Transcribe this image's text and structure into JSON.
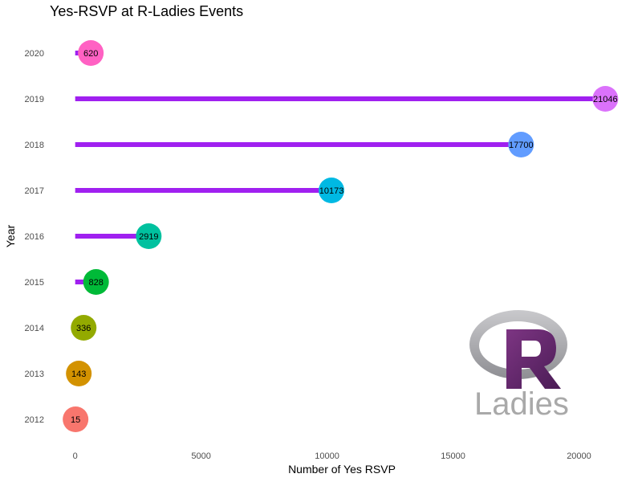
{
  "chart_data": {
    "type": "lollipop",
    "title": "Yes-RSVP at R-Ladies Events",
    "xlabel": "Number of Yes RSVP",
    "ylabel": "Year",
    "xlim": [
      -500,
      21800
    ],
    "x_ticks": [
      0,
      5000,
      10000,
      15000,
      20000
    ],
    "categories": [
      "2012",
      "2013",
      "2014",
      "2015",
      "2016",
      "2017",
      "2018",
      "2019",
      "2020"
    ],
    "values": [
      15,
      143,
      336,
      828,
      2919,
      10173,
      17700,
      21046,
      620
    ],
    "point_colors": [
      "#F8766D",
      "#D39200",
      "#93AA00",
      "#00BA38",
      "#00C19F",
      "#00B9E3",
      "#619CFF",
      "#DB72FB",
      "#FF61C3"
    ],
    "stem_color": "#A020F0",
    "grid": false,
    "legend": "none",
    "logo": {
      "text": "Ladies",
      "letter": "R"
    }
  }
}
